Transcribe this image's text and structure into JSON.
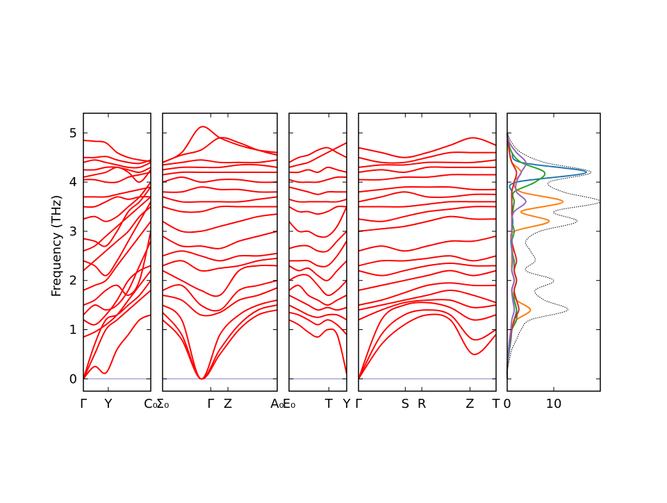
{
  "chart_data": {
    "type": "line",
    "title": "",
    "ylabel": "Frequency (THz)",
    "ylim": [
      -0.25,
      5.4
    ],
    "yticks": [
      "0",
      "1",
      "2",
      "3",
      "4",
      "5"
    ],
    "band_color": "#ff0000",
    "panels": [
      {
        "name": "gamma-y-c0",
        "ticks": [
          {
            "label": "Γ",
            "pos": 0
          },
          {
            "label": "Y",
            "pos": 0.37
          },
          {
            "label": "C₀",
            "pos": 1
          }
        ],
        "bands": [
          [
            0,
            0.25,
            0.12,
            0.6,
            0.9,
            1.2,
            1.3
          ],
          [
            0,
            0.5,
            1.0,
            1.2,
            1.4,
            1.6,
            1.8
          ],
          [
            0,
            0.7,
            1.2,
            1.3,
            1.5,
            1.7,
            2.0
          ],
          [
            0.85,
            0.95,
            1.1,
            1.3,
            1.6,
            1.9,
            2.2
          ],
          [
            1.2,
            1.1,
            1.3,
            1.6,
            2.0,
            2.2,
            2.3
          ],
          [
            1.3,
            1.5,
            1.4,
            1.5,
            1.8,
            2.3,
            2.8
          ],
          [
            1.5,
            1.6,
            1.8,
            1.9,
            1.7,
            2.0,
            3.0
          ],
          [
            1.8,
            1.9,
            2.0,
            2.3,
            2.6,
            2.9,
            3.2
          ],
          [
            2.2,
            2.4,
            2.6,
            2.8,
            3.0,
            3.3,
            3.5
          ],
          [
            2.4,
            2.3,
            2.1,
            2.4,
            2.8,
            3.2,
            3.6
          ],
          [
            2.6,
            2.7,
            2.9,
            3.1,
            3.3,
            3.5,
            3.7
          ],
          [
            2.85,
            2.8,
            2.7,
            3.0,
            3.4,
            3.6,
            3.9
          ],
          [
            3.25,
            3.3,
            3.2,
            3.3,
            3.5,
            3.7,
            4.0
          ],
          [
            3.5,
            3.5,
            3.6,
            3.7,
            3.65,
            3.7,
            3.7
          ],
          [
            3.7,
            3.7,
            3.7,
            3.75,
            3.8,
            3.85,
            3.9
          ],
          [
            4.05,
            4.05,
            4.0,
            4.0,
            4.1,
            4.15,
            4.2
          ],
          [
            4.1,
            4.15,
            4.2,
            4.3,
            4.2,
            4.0,
            4.25
          ],
          [
            4.25,
            4.25,
            4.3,
            4.3,
            4.25,
            4.2,
            4.3
          ],
          [
            4.4,
            4.45,
            4.4,
            4.35,
            4.3,
            4.3,
            4.4
          ],
          [
            4.5,
            4.5,
            4.52,
            4.45,
            4.4,
            4.38,
            4.45
          ],
          [
            4.85,
            4.83,
            4.8,
            4.6,
            4.5,
            4.45,
            4.42
          ]
        ]
      },
      {
        "name": "sigma0-gamma-z-a0",
        "ticks": [
          {
            "label": "Σ₀",
            "pos": 0
          },
          {
            "label": "Γ",
            "pos": 0.42
          },
          {
            "label": "Z",
            "pos": 0.57
          },
          {
            "label": "A₀",
            "pos": 1
          }
        ],
        "bands": [
          [
            1.2,
            0.8,
            0,
            0.5,
            1.0,
            1.3,
            1.4
          ],
          [
            1.35,
            0.9,
            0,
            0.6,
            1.1,
            1.4,
            1.5
          ],
          [
            1.5,
            1.2,
            0,
            0.9,
            1.3,
            1.5,
            1.6
          ],
          [
            1.7,
            1.6,
            1.3,
            1.35,
            1.6,
            1.7,
            1.85
          ],
          [
            1.8,
            1.9,
            1.5,
            1.4,
            1.8,
            1.9,
            2.0
          ],
          [
            2.2,
            2.0,
            1.8,
            1.7,
            2.2,
            2.3,
            2.3
          ],
          [
            2.3,
            2.4,
            2.2,
            2.25,
            2.3,
            2.4,
            2.45
          ],
          [
            2.5,
            2.6,
            2.5,
            2.4,
            2.5,
            2.5,
            2.55
          ],
          [
            2.9,
            2.7,
            2.7,
            2.65,
            2.8,
            2.9,
            3.0
          ],
          [
            3.2,
            3.0,
            3.0,
            3.1,
            3.2,
            3.3,
            3.35
          ],
          [
            3.5,
            3.4,
            3.4,
            3.5,
            3.5,
            3.5,
            3.5
          ],
          [
            3.7,
            3.6,
            3.6,
            3.6,
            3.6,
            3.65,
            3.7
          ],
          [
            3.8,
            3.8,
            3.9,
            3.85,
            3.85,
            3.8,
            3.8
          ],
          [
            4.0,
            4.1,
            4.0,
            4.05,
            4.05,
            4.0,
            4.0
          ],
          [
            4.15,
            4.2,
            4.2,
            4.2,
            4.2,
            4.2,
            4.2
          ],
          [
            4.25,
            4.3,
            4.3,
            4.3,
            4.35,
            4.35,
            4.3
          ],
          [
            4.35,
            4.4,
            4.45,
            4.4,
            4.4,
            4.4,
            4.45
          ],
          [
            4.4,
            4.55,
            4.65,
            4.9,
            4.8,
            4.65,
            4.55
          ],
          [
            4.4,
            4.6,
            5.12,
            4.9,
            4.75,
            4.65,
            4.6
          ]
        ]
      },
      {
        "name": "e0-t-y",
        "ticks": [
          {
            "label": "E₀",
            "pos": 0
          },
          {
            "label": "T",
            "pos": 0.69
          },
          {
            "label": "Y",
            "pos": 1
          }
        ],
        "bands": [
          [
            1.2,
            1.1,
            0.95,
            0.85,
            1.0,
            0.9,
            0.1
          ],
          [
            1.35,
            1.3,
            1.2,
            1.1,
            1.2,
            1.1,
            0.9
          ],
          [
            1.5,
            1.4,
            1.3,
            1.25,
            1.3,
            1.3,
            1.2
          ],
          [
            1.7,
            1.6,
            1.5,
            1.4,
            1.45,
            1.4,
            1.45
          ],
          [
            1.8,
            1.9,
            1.7,
            1.6,
            1.5,
            1.6,
            1.7
          ],
          [
            2.0,
            2.1,
            2.1,
            1.9,
            1.7,
            1.8,
            2.0
          ],
          [
            2.3,
            2.2,
            2.25,
            2.1,
            2.0,
            2.2,
            2.4
          ],
          [
            2.4,
            2.4,
            2.4,
            2.3,
            2.3,
            2.5,
            2.8
          ],
          [
            2.65,
            2.7,
            2.7,
            2.6,
            2.6,
            2.8,
            3.0
          ],
          [
            3.2,
            3.0,
            3.0,
            2.9,
            2.9,
            3.1,
            3.5
          ],
          [
            3.5,
            3.4,
            3.4,
            3.35,
            3.4,
            3.5,
            3.5
          ],
          [
            3.65,
            3.6,
            3.6,
            3.6,
            3.6,
            3.6,
            3.65
          ],
          [
            3.9,
            3.85,
            3.8,
            3.75,
            3.8,
            3.8,
            3.8
          ],
          [
            4.05,
            4.0,
            4.0,
            4.0,
            4.05,
            4.1,
            4.1
          ],
          [
            4.2,
            4.2,
            4.25,
            4.2,
            4.3,
            4.25,
            4.2
          ],
          [
            4.3,
            4.35,
            4.4,
            4.5,
            4.6,
            4.7,
            4.8
          ],
          [
            4.4,
            4.5,
            4.55,
            4.65,
            4.7,
            4.6,
            4.5
          ]
        ]
      },
      {
        "name": "gamma-s-r-z-t",
        "ticks": [
          {
            "label": "Γ",
            "pos": 0
          },
          {
            "label": "S",
            "pos": 0.34
          },
          {
            "label": "R",
            "pos": 0.46
          },
          {
            "label": "Z",
            "pos": 0.81
          },
          {
            "label": "T",
            "pos": 1
          }
        ],
        "bands": [
          [
            0,
            0.7,
            1.1,
            1.3,
            1.2,
            0.5,
            0.9
          ],
          [
            0,
            0.9,
            1.3,
            1.4,
            1.3,
            0.8,
            1.0
          ],
          [
            0,
            1.2,
            1.5,
            1.55,
            1.45,
            1.2,
            1.3
          ],
          [
            1.2,
            1.4,
            1.55,
            1.6,
            1.6,
            1.45,
            1.5
          ],
          [
            1.4,
            1.5,
            1.6,
            1.7,
            1.8,
            1.7,
            1.55
          ],
          [
            1.5,
            1.6,
            1.75,
            1.9,
            1.95,
            1.9,
            1.9
          ],
          [
            1.8,
            1.9,
            2.0,
            2.1,
            2.2,
            2.1,
            2.2
          ],
          [
            2.2,
            2.1,
            2.2,
            2.3,
            2.35,
            2.3,
            2.3
          ],
          [
            2.3,
            2.4,
            2.4,
            2.45,
            2.5,
            2.4,
            2.5
          ],
          [
            2.6,
            2.7,
            2.6,
            2.7,
            2.8,
            2.8,
            2.9
          ],
          [
            3.0,
            3.05,
            3.1,
            3.2,
            3.3,
            3.25,
            3.25
          ],
          [
            3.25,
            3.2,
            3.3,
            3.4,
            3.45,
            3.5,
            3.5
          ],
          [
            3.5,
            3.5,
            3.5,
            3.55,
            3.6,
            3.6,
            3.6
          ],
          [
            3.6,
            3.7,
            3.8,
            3.7,
            3.7,
            3.75,
            3.75
          ],
          [
            3.8,
            3.85,
            3.9,
            3.9,
            3.9,
            3.85,
            3.85
          ],
          [
            4.05,
            4.05,
            4.1,
            4.1,
            4.15,
            4.15,
            4.15
          ],
          [
            4.2,
            4.25,
            4.2,
            4.3,
            4.3,
            4.3,
            4.3
          ],
          [
            4.3,
            4.35,
            4.35,
            4.4,
            4.4,
            4.4,
            4.45
          ],
          [
            4.5,
            4.4,
            4.4,
            4.5,
            4.6,
            4.6,
            4.6
          ],
          [
            4.7,
            4.6,
            4.5,
            4.6,
            4.75,
            4.9,
            4.75
          ]
        ]
      }
    ],
    "dos": {
      "xlim": [
        0,
        20
      ],
      "xticks": [
        "0",
        "10"
      ],
      "freq": [
        0,
        0.2,
        0.4,
        0.6,
        0.8,
        1.0,
        1.2,
        1.4,
        1.6,
        1.8,
        2.0,
        2.2,
        2.4,
        2.6,
        2.8,
        3.0,
        3.2,
        3.4,
        3.6,
        3.8,
        4.0,
        4.2,
        4.4,
        4.6,
        4.8,
        5.0
      ],
      "total": {
        "color": "#000000",
        "values": [
          0,
          0.1,
          0.5,
          1,
          2,
          3,
          5,
          13,
          8,
          6,
          10,
          4,
          6,
          5,
          4,
          7,
          15,
          10,
          20,
          12,
          9,
          18,
          8,
          3,
          1,
          0
        ]
      },
      "projections": [
        {
          "color": "#1f77b4",
          "values": [
            0,
            0,
            0.2,
            0.5,
            0.8,
            1,
            1.5,
            2,
            1.5,
            1,
            1.5,
            1,
            1,
            1,
            0.8,
            1,
            1.2,
            1,
            1.5,
            1,
            2,
            17,
            3,
            1,
            0.3,
            0
          ]
        },
        {
          "color": "#ff7f0e",
          "values": [
            0,
            0,
            0.1,
            0.3,
            0.6,
            1,
            2,
            5,
            2,
            1,
            1.5,
            1,
            1,
            1.2,
            1,
            1.5,
            9,
            3,
            12,
            3,
            1.5,
            3,
            1,
            0.5,
            0.2,
            0
          ]
        },
        {
          "color": "#2ca02c",
          "values": [
            0,
            0,
            0.2,
            0.4,
            0.7,
            1,
            2,
            2,
            1.5,
            1.5,
            2,
            1.5,
            1.5,
            1,
            1,
            1.5,
            1,
            1.2,
            1.5,
            1.5,
            6,
            8,
            3,
            1,
            0.3,
            0
          ]
        },
        {
          "color": "#d62728",
          "values": [
            0,
            0,
            0.1,
            0.3,
            0.6,
            1,
            1.5,
            2.5,
            2,
            1.5,
            2,
            1.5,
            2,
            1.5,
            1,
            1,
            1,
            1,
            1,
            1,
            1.5,
            2,
            1,
            0.5,
            0.2,
            0
          ]
        },
        {
          "color": "#9467bd",
          "values": [
            0,
            0,
            0.1,
            0.3,
            0.5,
            0.8,
            1,
            1.5,
            1.2,
            1,
            1.5,
            1,
            1.2,
            1,
            1,
            1,
            1,
            1.5,
            4,
            2,
            2,
            3,
            4,
            2,
            0.5,
            0
          ]
        }
      ]
    }
  }
}
